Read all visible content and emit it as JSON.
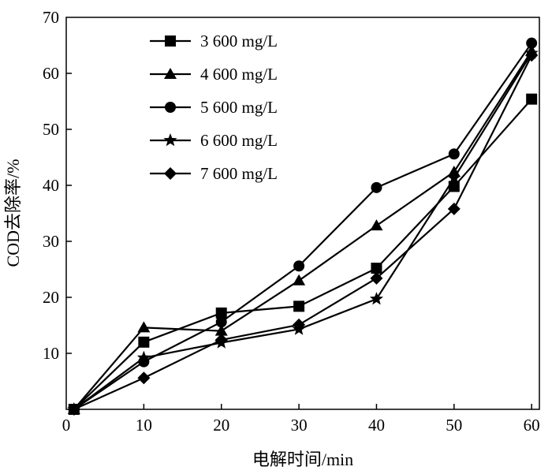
{
  "chart_data": {
    "type": "line",
    "title": "",
    "xlabel": "电解时间/min",
    "ylabel": "COD去除率/%",
    "x": [
      1,
      10,
      20,
      30,
      40,
      50,
      60
    ],
    "xlim": [
      0,
      61
    ],
    "ylim": [
      0,
      70
    ],
    "xticks": [
      0,
      10,
      20,
      30,
      40,
      50,
      60
    ],
    "yticks": [
      10,
      20,
      30,
      40,
      50,
      60,
      70
    ],
    "grid": false,
    "legend_position": "top-left",
    "series": [
      {
        "name": "3 600 mg/L",
        "marker": "square",
        "values": [
          0,
          12.0,
          17.2,
          18.4,
          25.2,
          39.8,
          55.4
        ]
      },
      {
        "name": "4 600 mg/L",
        "marker": "triangle",
        "values": [
          0,
          14.6,
          14.0,
          23.0,
          32.8,
          42.4,
          64.0
        ]
      },
      {
        "name": "5 600 mg/L",
        "marker": "circle",
        "values": [
          0,
          8.5,
          15.6,
          25.6,
          39.6,
          45.6,
          65.4
        ]
      },
      {
        "name": "6 600 mg/L",
        "marker": "star",
        "values": [
          0,
          9.2,
          11.9,
          14.3,
          19.7,
          41.3,
          63.6
        ]
      },
      {
        "name": "7 600 mg/L",
        "marker": "diamond",
        "values": [
          0,
          5.6,
          12.4,
          15.1,
          23.4,
          35.8,
          63.2
        ]
      }
    ],
    "colors": {
      "line": "#000000",
      "marker": "#000000",
      "background": "#ffffff"
    }
  }
}
